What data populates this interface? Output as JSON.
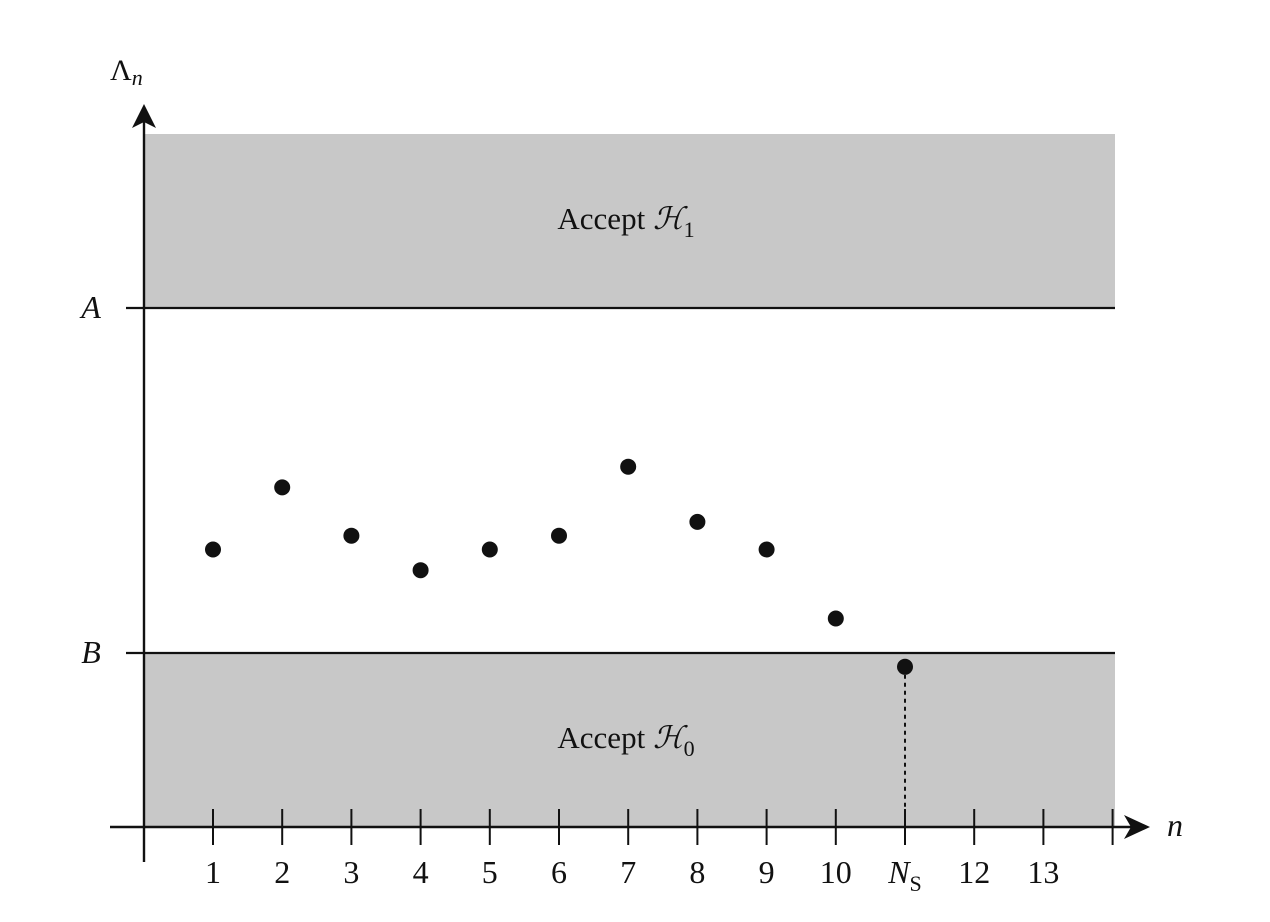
{
  "chart_data": {
    "type": "scatter",
    "xlabel": "n",
    "ylabel_main": "Λ",
    "ylabel_sub": "n",
    "thresholds": {
      "upper": {
        "label": "A",
        "value": 10
      },
      "lower": {
        "label": "B",
        "value": 0
      }
    },
    "regions": {
      "upper": {
        "text": "Accept ",
        "script": "ℋ",
        "sub": "1"
      },
      "lower": {
        "text": "Accept ",
        "script": "ℋ",
        "sub": "0"
      }
    },
    "ylim": [
      -5,
      15
    ],
    "xlim": [
      0,
      14
    ],
    "x_ticks": [
      {
        "x": 1,
        "label": "1"
      },
      {
        "x": 2,
        "label": "2"
      },
      {
        "x": 3,
        "label": "3"
      },
      {
        "x": 4,
        "label": "4"
      },
      {
        "x": 5,
        "label": "5"
      },
      {
        "x": 6,
        "label": "6"
      },
      {
        "x": 7,
        "label": "7"
      },
      {
        "x": 8,
        "label": "8"
      },
      {
        "x": 9,
        "label": "9"
      },
      {
        "x": 10,
        "label": "10"
      },
      {
        "x": 11,
        "label": "N",
        "sub": "S"
      },
      {
        "x": 12,
        "label": "12"
      },
      {
        "x": 13,
        "label": "13"
      },
      {
        "x": 14,
        "label": ""
      }
    ],
    "points": [
      {
        "x": 1,
        "y": 3
      },
      {
        "x": 2,
        "y": 4.8
      },
      {
        "x": 3,
        "y": 3.4
      },
      {
        "x": 4,
        "y": 2.4
      },
      {
        "x": 5,
        "y": 3
      },
      {
        "x": 6,
        "y": 3.4
      },
      {
        "x": 7,
        "y": 5.4
      },
      {
        "x": 8,
        "y": 3.8
      },
      {
        "x": 9,
        "y": 3
      },
      {
        "x": 10,
        "y": 1
      },
      {
        "x": 11,
        "y": -0.4
      }
    ],
    "stop_point_index": 10,
    "colors": {
      "region_fill": "#c8c8c8",
      "ink": "#111111"
    }
  }
}
